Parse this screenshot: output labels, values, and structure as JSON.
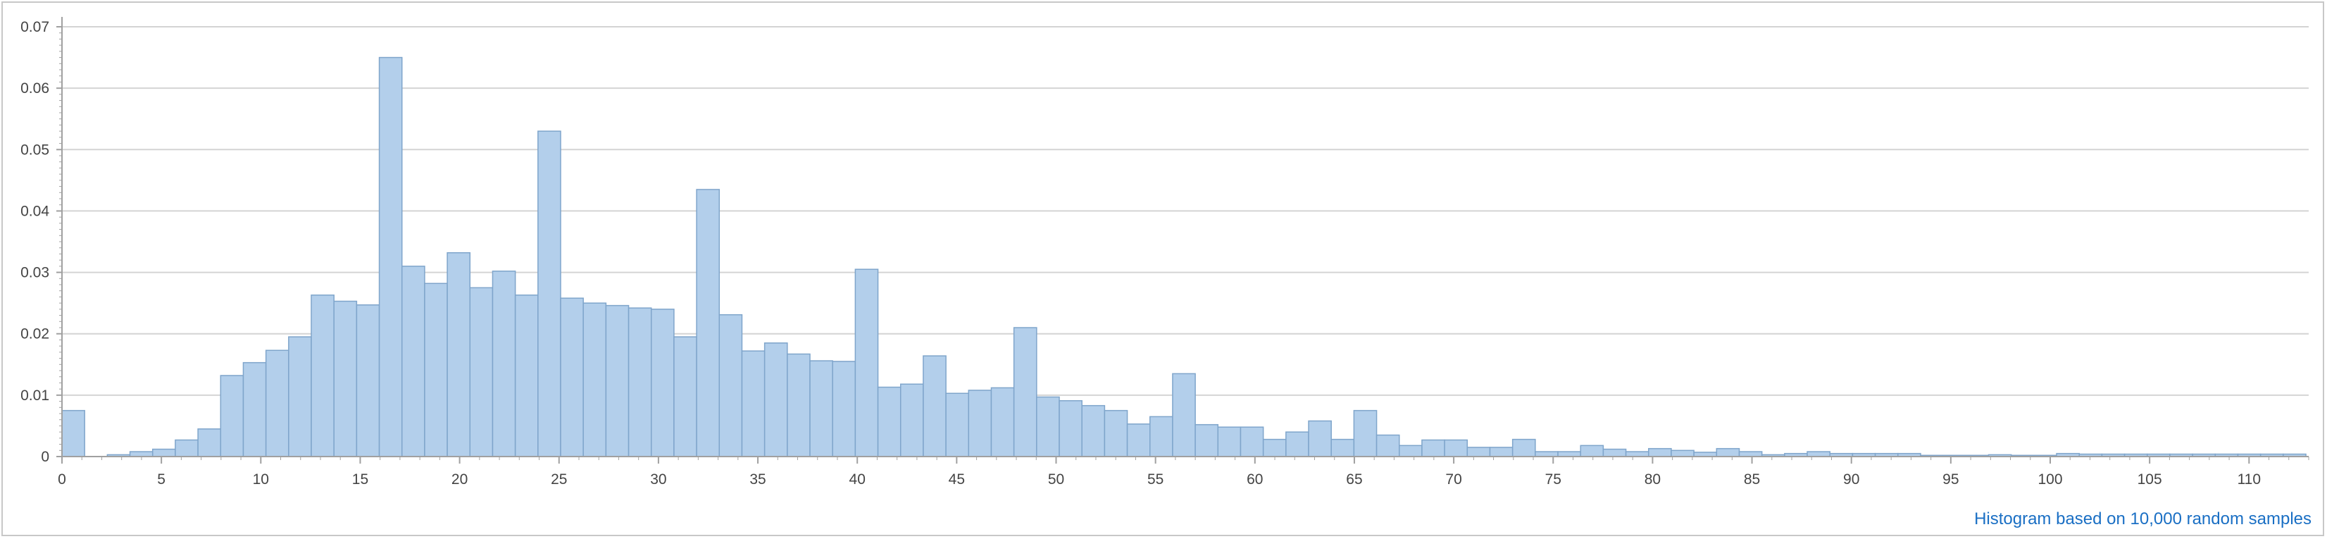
{
  "chart_data": {
    "type": "bar",
    "title": "",
    "xlabel": "",
    "ylabel": "",
    "xlim": [
      0,
      113
    ],
    "ylim": [
      0,
      0.07
    ],
    "x_ticks": [
      0,
      5,
      10,
      15,
      20,
      25,
      30,
      35,
      40,
      45,
      50,
      55,
      60,
      65,
      70,
      75,
      80,
      85,
      90,
      95,
      100,
      105,
      110
    ],
    "x_tick_labels": [
      "0",
      "5",
      "10",
      "15",
      "20",
      "25",
      "30",
      "35",
      "40",
      "45",
      "50",
      "55",
      "60",
      "65",
      "70",
      "75",
      "80",
      "85",
      "90",
      "95",
      "100",
      "105",
      "110"
    ],
    "y_ticks": [
      0,
      0.01,
      0.02,
      0.03,
      0.04,
      0.05,
      0.06,
      0.07
    ],
    "y_tick_labels": [
      "0",
      "0.01",
      "0.02",
      "0.03",
      "0.04",
      "0.05",
      "0.06",
      "0.07"
    ],
    "grid": true,
    "bin_start": 0,
    "bin_width": 1.14,
    "values": [
      0.0075,
      0,
      0.0003,
      0.0008,
      0.0012,
      0.0027,
      0.0045,
      0.0132,
      0.0153,
      0.0173,
      0.0195,
      0.0263,
      0.0253,
      0.0247,
      0.065,
      0.031,
      0.0282,
      0.0332,
      0.0275,
      0.0302,
      0.0263,
      0.053,
      0.0258,
      0.025,
      0.0246,
      0.0242,
      0.024,
      0.0195,
      0.0435,
      0.0231,
      0.0172,
      0.0185,
      0.0167,
      0.0156,
      0.0155,
      0.0305,
      0.0113,
      0.0118,
      0.0164,
      0.0103,
      0.0108,
      0.0112,
      0.021,
      0.0097,
      0.0091,
      0.0083,
      0.0075,
      0.0053,
      0.0065,
      0.0135,
      0.0052,
      0.0048,
      0.0048,
      0.0028,
      0.004,
      0.0058,
      0.0028,
      0.0075,
      0.0035,
      0.0018,
      0.0027,
      0.0027,
      0.0015,
      0.0015,
      0.0028,
      0.0008,
      0.0008,
      0.0018,
      0.0012,
      0.0008,
      0.0013,
      0.001,
      0.0007,
      0.0013,
      0.0008,
      0.0003,
      0.0005,
      0.0008,
      0.0005,
      0.0005,
      0.0005,
      0.0005,
      0.0002,
      0.0002,
      0.0002,
      0.0003,
      0.0002,
      0.0002,
      0.0005,
      0.0004,
      0.0004,
      0.0004,
      0.0004,
      0.0004,
      0.0004,
      0.0004,
      0.0004,
      0.0004,
      0.0004
    ],
    "bar_fill": "#b3cfeb",
    "bar_stroke": "#7fa5cb",
    "gridline_color": "#d4d4d4",
    "axis_color": "#a0a0a0",
    "annotation": "Histogram based on 10,000 random samples",
    "annotation_color": "#1a6fc4"
  }
}
